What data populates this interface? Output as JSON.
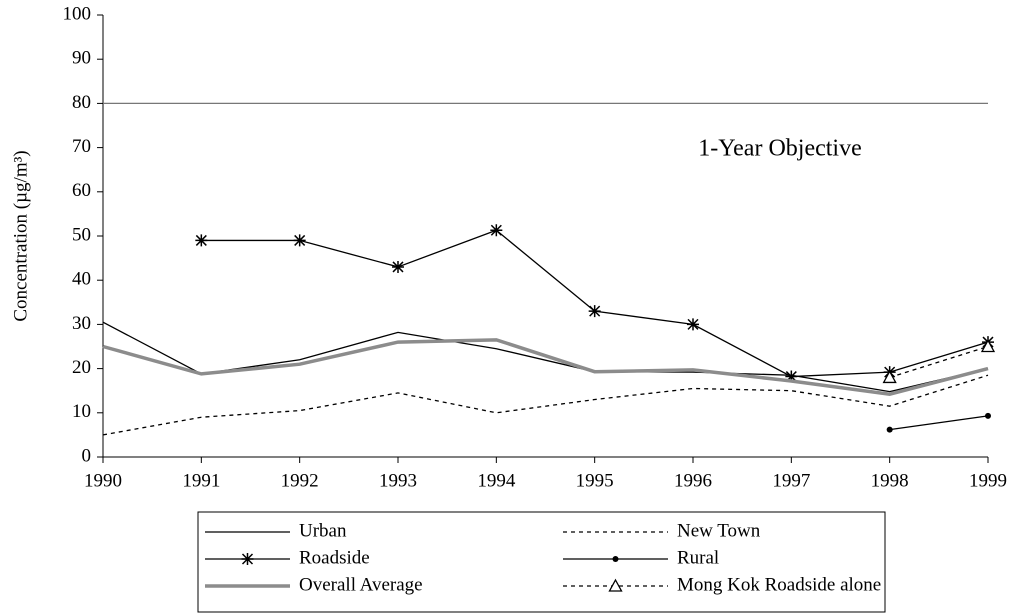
{
  "chart_data": {
    "type": "line",
    "ylabel": "Concentration (µg/m³)",
    "x": [
      1990,
      1991,
      1992,
      1993,
      1994,
      1995,
      1996,
      1997,
      1998,
      1999
    ],
    "xlim": [
      1990,
      1999
    ],
    "xticks": [
      1990,
      1991,
      1992,
      1993,
      1994,
      1995,
      1996,
      1997,
      1998,
      1999
    ],
    "ylim": [
      0,
      100
    ],
    "yticks": [
      0,
      10,
      20,
      30,
      40,
      50,
      60,
      70,
      80,
      90,
      100
    ],
    "reference_line": {
      "value": 80,
      "label": "1-Year Objective"
    },
    "series": [
      {
        "name": "Urban",
        "color": "#000000",
        "dash": "solid",
        "marker": "none",
        "width": 1.3,
        "values": [
          30.5,
          18.8,
          22,
          28.2,
          24.5,
          19.3,
          19.2,
          18.5,
          14.8,
          20
        ]
      },
      {
        "name": "New Town",
        "color": "#000000",
        "dash": "dotted",
        "marker": "none",
        "width": 1.3,
        "values": [
          5,
          9,
          10.5,
          14.5,
          10,
          13,
          15.5,
          15,
          11.5,
          18.5
        ]
      },
      {
        "name": "Roadside",
        "color": "#000000",
        "dash": "solid",
        "marker": "star",
        "width": 1.3,
        "values": [
          null,
          49,
          49,
          43,
          51.3,
          33,
          30,
          18.2,
          19.2,
          26
        ]
      },
      {
        "name": "Rural",
        "color": "#000000",
        "dash": "solid",
        "marker": "dot",
        "width": 1.3,
        "values": [
          null,
          null,
          null,
          null,
          null,
          null,
          null,
          null,
          6.2,
          9.3
        ]
      },
      {
        "name": "Overall Average",
        "color": "#8c8c8c",
        "dash": "solid",
        "marker": "none",
        "width": 3.5,
        "values": [
          25,
          18.8,
          21,
          26,
          26.5,
          19.3,
          19.7,
          17.2,
          14.2,
          20
        ]
      },
      {
        "name": "Mong Kok Roadside alone",
        "color": "#000000",
        "dash": "dotted",
        "marker": "triangle",
        "width": 1.3,
        "values": [
          null,
          null,
          null,
          null,
          null,
          null,
          null,
          null,
          18,
          25
        ]
      }
    ]
  }
}
